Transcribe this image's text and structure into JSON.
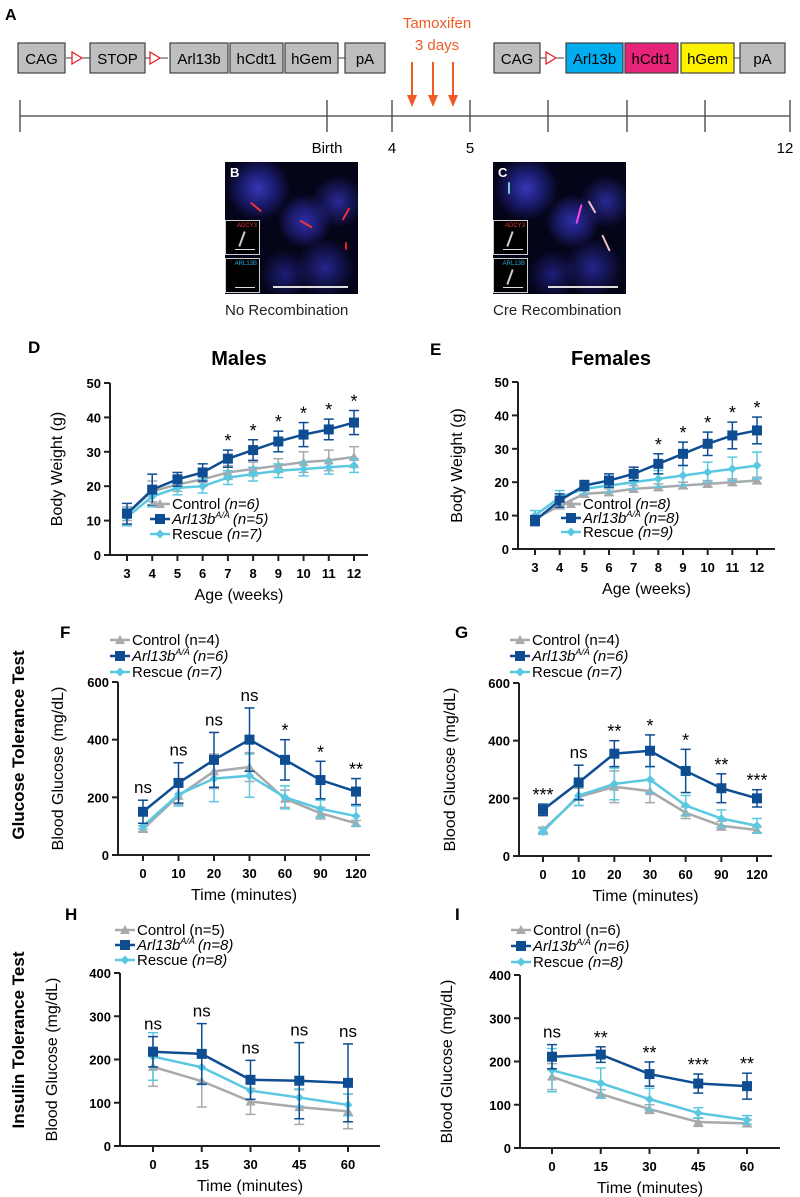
{
  "panel_a": {
    "letter": "A",
    "construct_before": [
      "CAG",
      "STOP",
      "Arl13b",
      "hCdt1",
      "hGem",
      "pA"
    ],
    "construct_after": [
      "CAG",
      "Arl13b",
      "hCdt1",
      "hGem",
      "pA"
    ],
    "tamoxifen_label": "Tamoxifen",
    "tamoxifen_duration": "3 days",
    "timeline_labels": {
      "birth": "Birth",
      "w4": "4",
      "w5": "5",
      "w12": "12"
    }
  },
  "panel_b": {
    "letter": "B",
    "inset_top": "ADCY3",
    "inset_bottom": "ARL13B",
    "caption": "No Recombination"
  },
  "panel_c": {
    "letter": "C",
    "inset_top": "ADCY3",
    "inset_bottom": "ARL13B",
    "caption": "Cre Recombination"
  },
  "row_labels": {
    "glucose": "Glucose Tolerance Test",
    "insulin": "Insulin Tolerance Test"
  },
  "colors": {
    "control": "#a7a9ac",
    "arl13b": "#0e4d92",
    "rescue": "#5bc8e2",
    "tamoxifen": "#f15a24",
    "arl13b_box": "#00aeef",
    "hcdt1_box": "#e8237a",
    "hgem_box": "#fff200",
    "box_gray": "#bcbec0"
  },
  "chart_data": [
    {
      "panel": "D",
      "type": "line",
      "title": "Males",
      "xlabel": "Age (weeks)",
      "ylabel": "Body Weight (g)",
      "categories": [
        "3",
        "4",
        "5",
        "6",
        "7",
        "8",
        "9",
        "10",
        "11",
        "12"
      ],
      "ylim": [
        0,
        50
      ],
      "yticks": [
        "0",
        "10",
        "20",
        "30",
        "40",
        "50"
      ],
      "legend_placement": "bottom-center",
      "series": [
        {
          "name": "Control",
          "sup": "",
          "n": "(n=6)",
          "values": [
            12,
            18.5,
            20.5,
            22,
            24,
            25,
            26,
            27,
            27.5,
            28.5
          ],
          "errors": [
            2,
            3,
            2,
            2,
            2,
            2,
            2,
            3,
            3,
            3
          ]
        },
        {
          "name": "Arl13b",
          "sup": "A/A",
          "n": "(n=5)",
          "values": [
            12,
            19,
            22,
            24,
            28,
            30.5,
            33,
            35,
            36.5,
            38.5
          ],
          "errors": [
            3,
            4.5,
            2,
            2.5,
            2.5,
            3,
            3,
            3.5,
            3,
            3.5
          ]
        },
        {
          "name": "Rescue",
          "sup": "",
          "n": "(n=7)",
          "values": [
            11,
            17,
            19.5,
            20,
            22.5,
            23.5,
            24.5,
            25,
            25.5,
            26
          ],
          "errors": [
            2.5,
            3,
            2,
            2,
            2,
            2,
            2,
            2,
            2,
            2
          ]
        }
      ],
      "significance": [
        "",
        "",
        "",
        "",
        "*",
        "*",
        "*",
        "*",
        "*",
        "*"
      ]
    },
    {
      "panel": "E",
      "type": "line",
      "title": "Females",
      "xlabel": "Age (weeks)",
      "ylabel": "Body Weight (g)",
      "categories": [
        "3",
        "4",
        "5",
        "6",
        "7",
        "8",
        "9",
        "10",
        "11",
        "12"
      ],
      "ylim": [
        0,
        50
      ],
      "yticks": [
        "0",
        "10",
        "20",
        "30",
        "40",
        "50"
      ],
      "legend_placement": "bottom-center",
      "series": [
        {
          "name": "Control",
          "sup": "",
          "n": "(n=8)",
          "values": [
            9,
            13,
            16.5,
            17,
            18,
            18.5,
            19,
            19.5,
            20,
            20.5
          ],
          "errors": [
            1,
            1,
            1,
            1,
            1,
            1,
            1,
            1,
            1,
            1
          ]
        },
        {
          "name": "Arl13b",
          "sup": "A/A",
          "n": "(n=8)",
          "values": [
            8.5,
            14.5,
            19,
            20.5,
            22.5,
            25.5,
            28.5,
            31.5,
            34,
            35.5
          ],
          "errors": [
            1.5,
            2,
            1.5,
            2,
            2,
            3,
            3.5,
            3.5,
            4,
            4
          ]
        },
        {
          "name": "Rescue",
          "sup": "",
          "n": "(n=9)",
          "values": [
            10,
            15.5,
            18,
            19,
            20,
            21,
            22,
            23,
            24,
            25
          ],
          "errors": [
            1.5,
            2,
            1.5,
            2,
            2,
            2.5,
            3,
            3,
            3.5,
            4
          ]
        }
      ],
      "significance": [
        "",
        "",
        "",
        "",
        "",
        "*",
        "*",
        "*",
        "*",
        "*"
      ]
    },
    {
      "panel": "F",
      "type": "line",
      "title": "",
      "xlabel": "Time (minutes)",
      "ylabel": "Blood Glucose (mg/dL)",
      "categories": [
        "0",
        "10",
        "20",
        "30",
        "60",
        "90",
        "120"
      ],
      "ylim": [
        0,
        600
      ],
      "yticks": [
        "0",
        "200",
        "400",
        "600"
      ],
      "legend_placement": "top-left",
      "series": [
        {
          "name": "Control",
          "sup": "",
          "n": "(n=4)",
          "values": [
            90,
            205,
            290,
            305,
            195,
            145,
            110
          ],
          "errors": [
            10,
            30,
            60,
            50,
            30,
            20,
            10
          ]
        },
        {
          "name": "Arl13b",
          "sup": "A/A",
          "n": "(n=6)",
          "values": [
            150,
            250,
            330,
            400,
            330,
            260,
            220
          ],
          "errors": [
            40,
            70,
            95,
            110,
            70,
            65,
            45
          ]
        },
        {
          "name": "Rescue",
          "sup": "",
          "n": "(n=7)",
          "values": [
            100,
            210,
            265,
            275,
            200,
            160,
            135
          ],
          "errors": [
            10,
            40,
            80,
            75,
            40,
            30,
            35
          ]
        }
      ],
      "significance": [
        "ns",
        "ns",
        "ns",
        "ns",
        "*",
        "*",
        "**"
      ]
    },
    {
      "panel": "G",
      "type": "line",
      "title": "",
      "xlabel": "Time (minutes)",
      "ylabel": "Blood Glucose (mg/dL)",
      "categories": [
        "0",
        "10",
        "20",
        "30",
        "60",
        "90",
        "120"
      ],
      "ylim": [
        0,
        600
      ],
      "yticks": [
        "0",
        "200",
        "400",
        "600"
      ],
      "legend_placement": "top-left",
      "series": [
        {
          "name": "Control",
          "sup": "",
          "n": "(n=4)",
          "values": [
            90,
            205,
            240,
            225,
            150,
            105,
            90
          ],
          "errors": [
            10,
            30,
            55,
            40,
            20,
            15,
            10
          ]
        },
        {
          "name": "Arl13b",
          "sup": "A/A",
          "n": "(n=6)",
          "values": [
            160,
            255,
            355,
            365,
            295,
            235,
            200
          ],
          "errors": [
            20,
            60,
            45,
            55,
            75,
            50,
            30
          ]
        },
        {
          "name": "Rescue",
          "sup": "",
          "n": "(n=7)",
          "values": [
            85,
            210,
            250,
            265,
            175,
            130,
            105
          ],
          "errors": [
            10,
            35,
            55,
            45,
            35,
            30,
            25
          ]
        }
      ],
      "significance": [
        "***",
        "ns",
        "**",
        "*",
        "*",
        "**",
        "***"
      ]
    },
    {
      "panel": "H",
      "type": "line",
      "title": "",
      "xlabel": "Time (minutes)",
      "ylabel": "Blood Glucose (mg/dL)",
      "categories": [
        "0",
        "15",
        "30",
        "45",
        "60"
      ],
      "ylim": [
        0,
        400
      ],
      "yticks": [
        "0",
        "100",
        "200",
        "300",
        "400"
      ],
      "legend_placement": "top-left",
      "series": [
        {
          "name": "Control",
          "sup": "",
          "n": "(n=5)",
          "values": [
            183,
            150,
            103,
            90,
            80
          ],
          "errors": [
            45,
            60,
            30,
            40,
            40
          ]
        },
        {
          "name": "Arl13b",
          "sup": "A/A",
          "n": "(n=8)",
          "values": [
            218,
            213,
            153,
            151,
            146
          ],
          "errors": [
            35,
            70,
            45,
            88,
            90
          ]
        },
        {
          "name": "Rescue",
          "sup": "",
          "n": "(n=8)",
          "values": [
            207,
            182,
            128,
            112,
            95
          ],
          "errors": [
            55,
            40,
            20,
            20,
            25
          ]
        }
      ],
      "significance": [
        "ns",
        "ns",
        "ns",
        "ns",
        "ns"
      ]
    },
    {
      "panel": "I",
      "type": "line",
      "title": "",
      "xlabel": "Time (minutes)",
      "ylabel": "Blood Glucose (mg/dL)",
      "categories": [
        "0",
        "15",
        "30",
        "45",
        "60"
      ],
      "ylim": [
        0,
        400
      ],
      "yticks": [
        "0",
        "100",
        "200",
        "300",
        "400"
      ],
      "legend_placement": "top-left",
      "series": [
        {
          "name": "Control",
          "sup": "",
          "n": "(n=6)",
          "values": [
            165,
            125,
            90,
            60,
            57
          ],
          "errors": [
            30,
            10,
            10,
            10,
            8
          ]
        },
        {
          "name": "Arl13b",
          "sup": "A/A",
          "n": "(n=6)",
          "values": [
            211,
            216,
            171,
            149,
            143
          ],
          "errors": [
            28,
            18,
            28,
            22,
            30
          ]
        },
        {
          "name": "Rescue",
          "sup": "",
          "n": "(n=8)",
          "values": [
            180,
            150,
            113,
            81,
            65
          ],
          "errors": [
            50,
            35,
            25,
            12,
            10
          ]
        }
      ],
      "significance": [
        "ns",
        "**",
        "**",
        "***",
        "**"
      ]
    }
  ]
}
